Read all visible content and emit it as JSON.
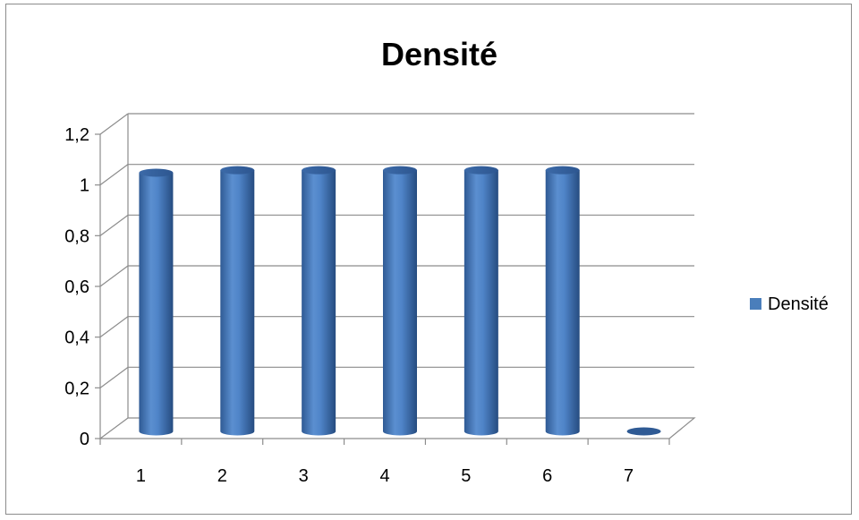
{
  "chart_data": {
    "type": "bar",
    "style": "3d-cylinder",
    "title": "Densité",
    "categories": [
      "1",
      "2",
      "3",
      "4",
      "5",
      "6",
      "7"
    ],
    "series": [
      {
        "name": "Densité",
        "values": [
          1.02,
          1.03,
          1.03,
          1.03,
          1.03,
          1.03,
          0
        ],
        "color": "#4a7ebb"
      }
    ],
    "y_ticks": [
      "0",
      "0,2",
      "0,4",
      "0,6",
      "0,8",
      "1",
      "1,2"
    ],
    "ylim": [
      0,
      1.2
    ],
    "grid": true,
    "legend_position": "right"
  }
}
